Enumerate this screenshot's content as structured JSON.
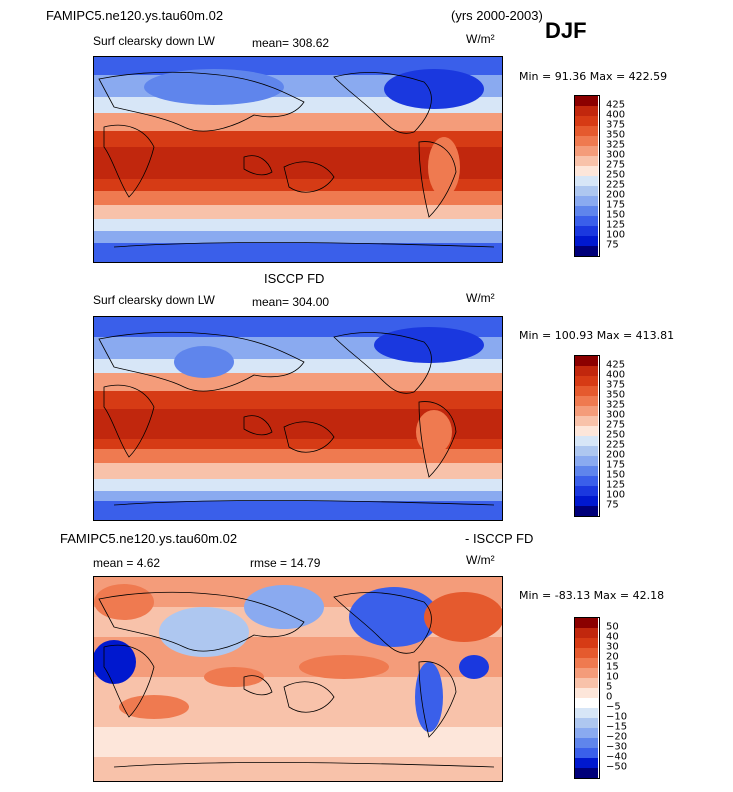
{
  "header": {
    "case_name": "FAMIPC5.ne120.ys.tau60m.02",
    "years": "(yrs 2000-2003)",
    "season": "DJF"
  },
  "panels": [
    {
      "id": "model",
      "title": "",
      "variable": "Surf clearsky down LW",
      "mean_text": "mean= 308.62",
      "units": "W/m²",
      "minmax_text": "Min =  91.36 Max = 422.59",
      "levels": [
        "425",
        "400",
        "375",
        "350",
        "325",
        "300",
        "275",
        "250",
        "225",
        "200",
        "175",
        "150",
        "125",
        "100",
        "75"
      ],
      "colors": [
        "#8b0000",
        "#c1270d",
        "#d63b15",
        "#e55a2e",
        "#ef7a50",
        "#f49c7a",
        "#f8c2aa",
        "#fde6da",
        "#d7e6f7",
        "#aec7f0",
        "#8aaaf0",
        "#5f85ec",
        "#3a5fea",
        "#1a38df",
        "#0018cf",
        "#00007a"
      ],
      "stats": {
        "mean": 308.62,
        "min": 91.36,
        "max": 422.59
      }
    },
    {
      "id": "obs",
      "title": "ISCCP FD",
      "variable": "Surf clearsky down LW",
      "mean_text": "mean= 304.00",
      "units": "W/m²",
      "minmax_text": "Min = 100.93 Max = 413.81",
      "levels": [
        "425",
        "400",
        "375",
        "350",
        "325",
        "300",
        "275",
        "250",
        "225",
        "200",
        "175",
        "150",
        "125",
        "100",
        "75"
      ],
      "colors": [
        "#8b0000",
        "#c1270d",
        "#d63b15",
        "#e55a2e",
        "#ef7a50",
        "#f49c7a",
        "#f8c2aa",
        "#fde6da",
        "#d7e6f7",
        "#aec7f0",
        "#8aaaf0",
        "#5f85ec",
        "#3a5fea",
        "#1a38df",
        "#0018cf",
        "#00007a"
      ],
      "stats": {
        "mean": 304.0,
        "min": 100.93,
        "max": 413.81
      }
    },
    {
      "id": "diff",
      "title_left": "FAMIPC5.ne120.ys.tau60m.02",
      "title_right": "- ISCCP FD",
      "mean_text": "mean =    4.62",
      "rmse_text": "rmse =   14.79",
      "units": "W/m²",
      "minmax_text": "Min = -83.13 Max =  42.18",
      "levels": [
        "50",
        "40",
        "30",
        "20",
        "15",
        "10",
        "5",
        "0",
        "−5",
        "−10",
        "−15",
        "−20",
        "−30",
        "−40",
        "−50"
      ],
      "colors": [
        "#8b0000",
        "#c1270d",
        "#d63b15",
        "#e55a2e",
        "#ef7a50",
        "#f49c7a",
        "#f8c2aa",
        "#fde6da",
        "#ffffff",
        "#d7e6f7",
        "#aec7f0",
        "#8aaaf0",
        "#5f85ec",
        "#3a5fea",
        "#0018cf",
        "#00007a"
      ],
      "stats": {
        "mean": 4.62,
        "rmse": 14.79,
        "min": -83.13,
        "max": 42.18
      }
    }
  ],
  "chart_data": [
    {
      "type": "heatmap",
      "title": "Surf clearsky down LW",
      "units": "W/m²",
      "mean": 308.62,
      "min": 91.36,
      "max": 422.59,
      "levels": [
        75,
        100,
        125,
        150,
        175,
        200,
        225,
        250,
        275,
        300,
        325,
        350,
        375,
        400,
        425
      ]
    },
    {
      "type": "heatmap",
      "title": "ISCCP FD",
      "units": "W/m²",
      "mean": 304.0,
      "min": 100.93,
      "max": 413.81,
      "levels": [
        75,
        100,
        125,
        150,
        175,
        200,
        225,
        250,
        275,
        300,
        325,
        350,
        375,
        400,
        425
      ]
    },
    {
      "type": "heatmap",
      "title": "FAMIPC5.ne120.ys.tau60m.02 - ISCCP FD",
      "units": "W/m²",
      "mean": 4.62,
      "rmse": 14.79,
      "min": -83.13,
      "max": 42.18,
      "levels": [
        -50,
        -40,
        -30,
        -20,
        -15,
        -10,
        -5,
        0,
        5,
        10,
        15,
        20,
        30,
        40,
        50
      ]
    }
  ]
}
